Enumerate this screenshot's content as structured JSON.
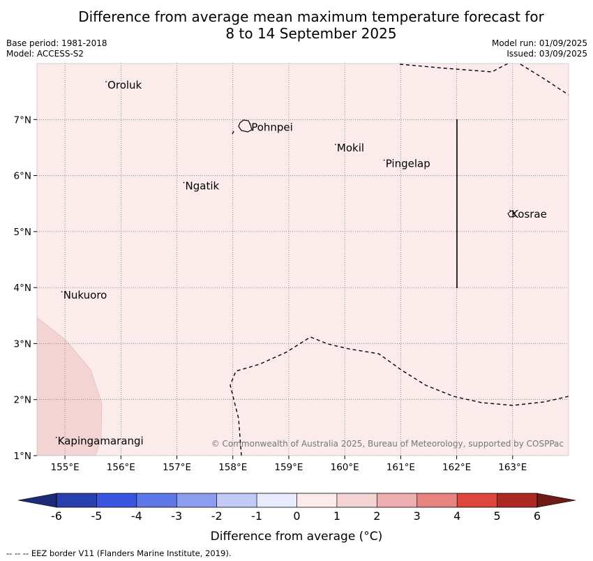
{
  "title": {
    "line1": "Difference from average mean maximum temperature forecast for",
    "line2": "8 to 14 September 2025"
  },
  "meta": {
    "base_period": "Base period: 1981-2018",
    "model": "Model: ACCESS-S2",
    "model_run": "Model run: 01/09/2025",
    "issued": "Issued: 03/09/2025"
  },
  "map": {
    "lon_range": [
      154.5,
      164.0
    ],
    "lat_range": [
      1.0,
      8.0
    ],
    "lon_ticks": [
      155,
      156,
      157,
      158,
      159,
      160,
      161,
      162,
      163
    ],
    "lon_tick_labels": [
      "155°E",
      "156°E",
      "157°E",
      "158°E",
      "159°E",
      "160°E",
      "161°E",
      "162°E",
      "163°E"
    ],
    "lat_ticks": [
      1,
      2,
      3,
      4,
      5,
      6,
      7
    ],
    "lat_tick_labels": [
      "1°N",
      "2°N",
      "3°N",
      "4°N",
      "5°N",
      "6°N",
      "7°N"
    ],
    "background_color": "#fbebea",
    "warm_patch_color": "#f4d4d3",
    "places": [
      {
        "name": "Oroluk",
        "lon": 155.76,
        "lat": 7.6
      },
      {
        "name": "Pohnpei",
        "lon": 158.33,
        "lat": 6.85
      },
      {
        "name": "Mokil",
        "lon": 159.86,
        "lat": 6.48
      },
      {
        "name": "Pingelap",
        "lon": 160.73,
        "lat": 6.2
      },
      {
        "name": "Ngatik",
        "lon": 157.15,
        "lat": 5.8
      },
      {
        "name": "Kosrae",
        "lon": 162.98,
        "lat": 5.3
      },
      {
        "name": "Nukuoro",
        "lon": 154.97,
        "lat": 3.85
      },
      {
        "name": "Kapingamarangi",
        "lon": 154.87,
        "lat": 1.25
      }
    ],
    "copyright": "© Commonwealth of Australia 2025, Bureau of Meteorology, supported by COSPPac"
  },
  "colorbar": {
    "ticks": [
      "-6",
      "-5",
      "-4",
      "-3",
      "-2",
      "-1",
      "0",
      "1",
      "2",
      "3",
      "4",
      "5",
      "6"
    ],
    "colors": [
      "#2a3fae",
      "#3a55df",
      "#5d78e6",
      "#8a9def",
      "#c1caf5",
      "#e8ebfb",
      "#fbebea",
      "#f4d4d3",
      "#eeafae",
      "#e8847f",
      "#dc473b",
      "#ac2822"
    ],
    "under_color": "#1c2a78",
    "over_color": "#6e1a16",
    "label": "Difference from average (°C)"
  },
  "footer": "--  --  -- EEZ border V11 (Flanders Marine Institute, 2019)."
}
